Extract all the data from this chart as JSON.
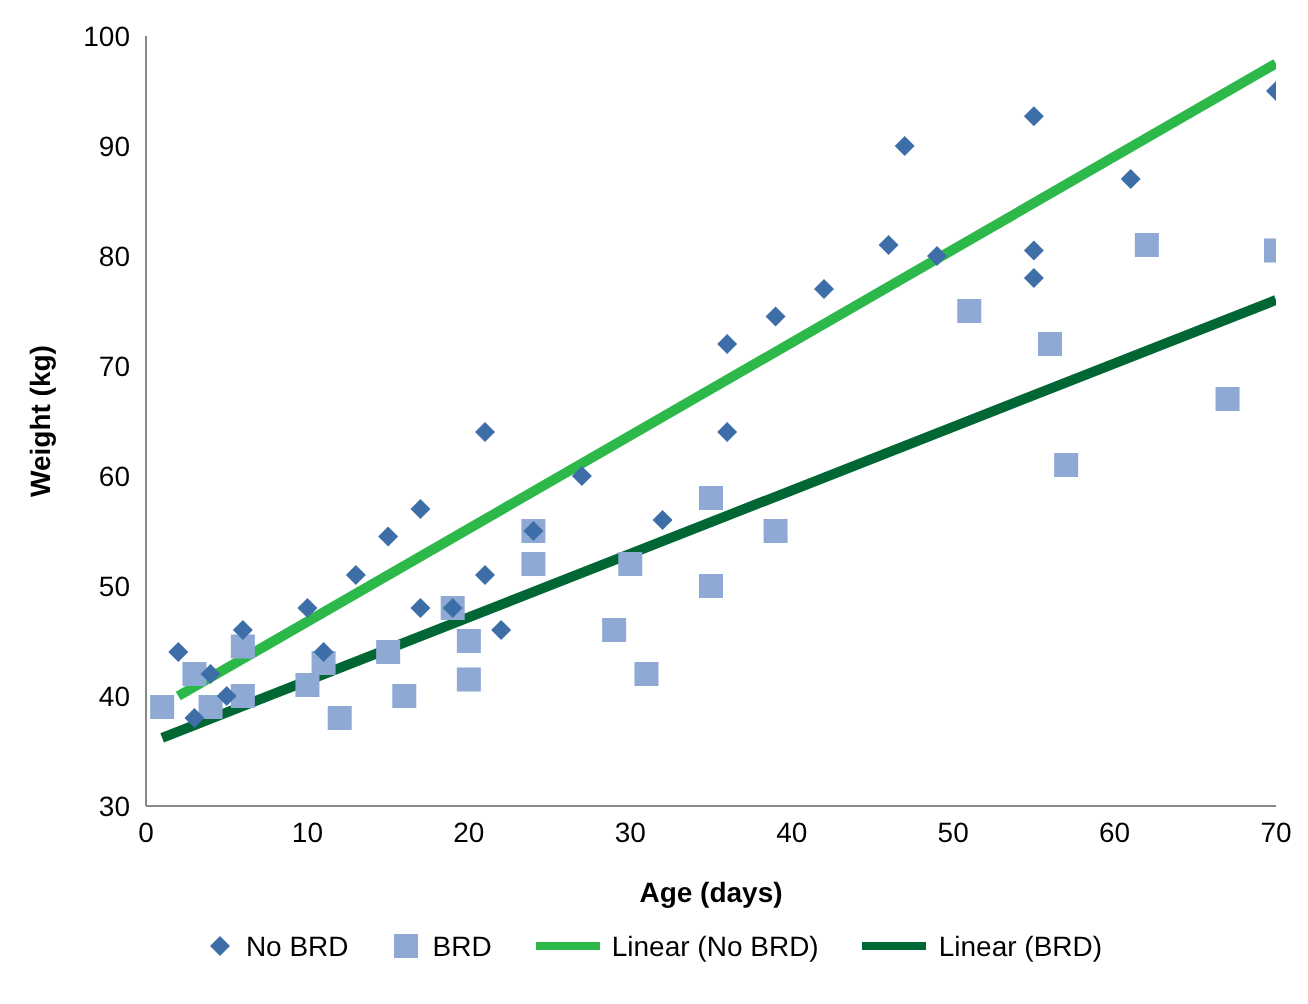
{
  "chart_data": {
    "type": "scatter",
    "xlabel": "Age (days)",
    "ylabel": "Weight (kg)",
    "xlim": [
      0,
      70
    ],
    "xticks": [
      0,
      10,
      20,
      30,
      40,
      50,
      60,
      70
    ],
    "ylim": [
      30,
      100
    ],
    "yticks": [
      30,
      40,
      50,
      60,
      70,
      80,
      90,
      100
    ],
    "legend": "bottom",
    "series": [
      {
        "name": "No BRD",
        "marker": "diamond",
        "color": "#3e6ea8",
        "x": [
          2,
          3,
          4,
          5,
          6,
          10,
          11,
          13,
          15,
          17,
          17,
          19,
          21,
          21,
          22,
          24,
          27,
          32,
          36,
          36,
          39,
          42,
          46,
          47,
          49,
          55,
          55,
          55,
          61,
          70
        ],
        "values": [
          44,
          38,
          42,
          40,
          46,
          48,
          44,
          51,
          54.5,
          57,
          48,
          48,
          64,
          51,
          46,
          55,
          60,
          56,
          72,
          64,
          74.5,
          77,
          81,
          90,
          80,
          92.7,
          80.5,
          78,
          87,
          95
        ]
      },
      {
        "name": "BRD",
        "marker": "square",
        "color": "#8eaad4",
        "x": [
          1,
          3,
          4,
          6,
          6,
          10,
          11,
          12,
          15,
          16,
          19,
          20,
          20,
          24,
          24,
          29,
          30,
          31,
          35,
          35,
          39,
          51,
          56,
          57,
          62,
          67,
          70
        ],
        "values": [
          39,
          42,
          39,
          44.5,
          40,
          41,
          43,
          38,
          44,
          40,
          48,
          45,
          41.5,
          55,
          52,
          46,
          52,
          42,
          58,
          50,
          55,
          75,
          72,
          61,
          81,
          67,
          80.5
        ]
      },
      {
        "name": "Linear (No BRD)",
        "type": "line",
        "marker": "none",
        "color": "#2db84a",
        "x": [
          2,
          70
        ],
        "values": [
          40,
          97.5
        ]
      },
      {
        "name": "Linear (BRD)",
        "type": "line",
        "marker": "none",
        "color": "#006633",
        "x": [
          1,
          70
        ],
        "values": [
          36.2,
          76
        ]
      }
    ]
  }
}
